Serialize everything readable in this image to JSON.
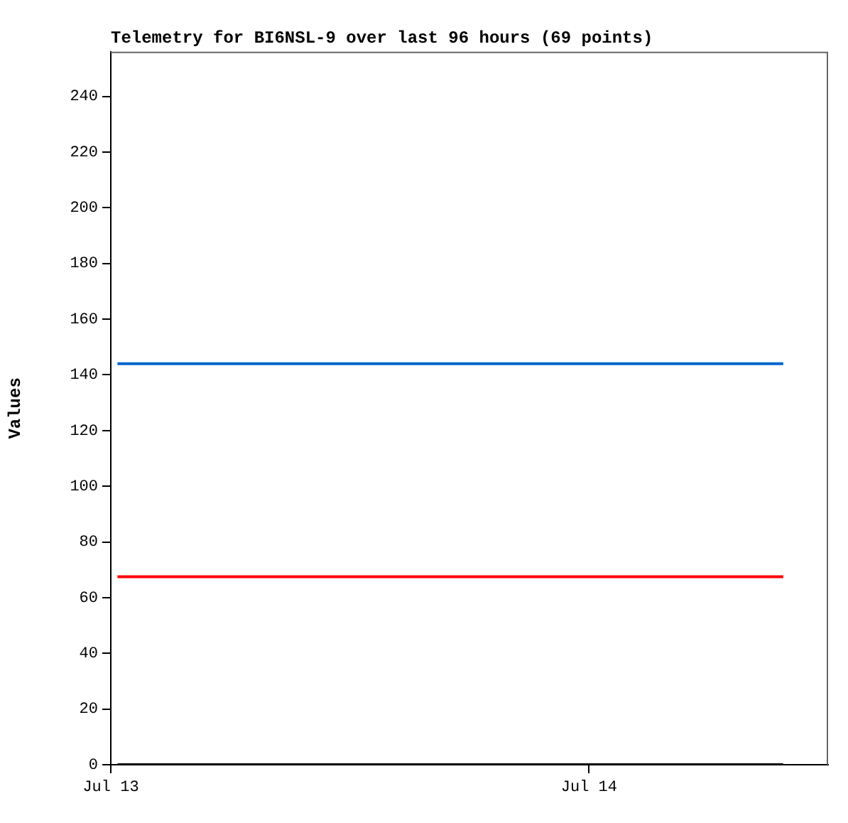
{
  "chart_data": {
    "type": "line",
    "title": "Telemetry for BI6NSL-9 over last 96 hours (69 points)",
    "ylabel": "Values",
    "x": [
      "--07-13T00:20",
      "--07-14T09:45"
    ],
    "series": [
      {
        "color": "#0066cc",
        "values": [
          144,
          144
        ]
      },
      {
        "color": "#ff0000",
        "values": [
          67.5,
          67.5
        ]
      },
      {
        "color": "#000000",
        "values": [
          0,
          0
        ]
      }
    ],
    "xlim": [
      "--07-13T00:00",
      "--07-14T12:00"
    ],
    "xticks": [
      {
        "value": "--07-13",
        "label": "Jul 13"
      },
      {
        "value": "--07-14",
        "label": "Jul 14"
      }
    ],
    "ylim": [
      0,
      256
    ],
    "yticks": [
      0,
      20,
      40,
      60,
      80,
      100,
      120,
      140,
      160,
      180,
      200,
      220,
      240
    ],
    "grid": false,
    "legend": false,
    "marker": "none",
    "line_style": "solid"
  }
}
